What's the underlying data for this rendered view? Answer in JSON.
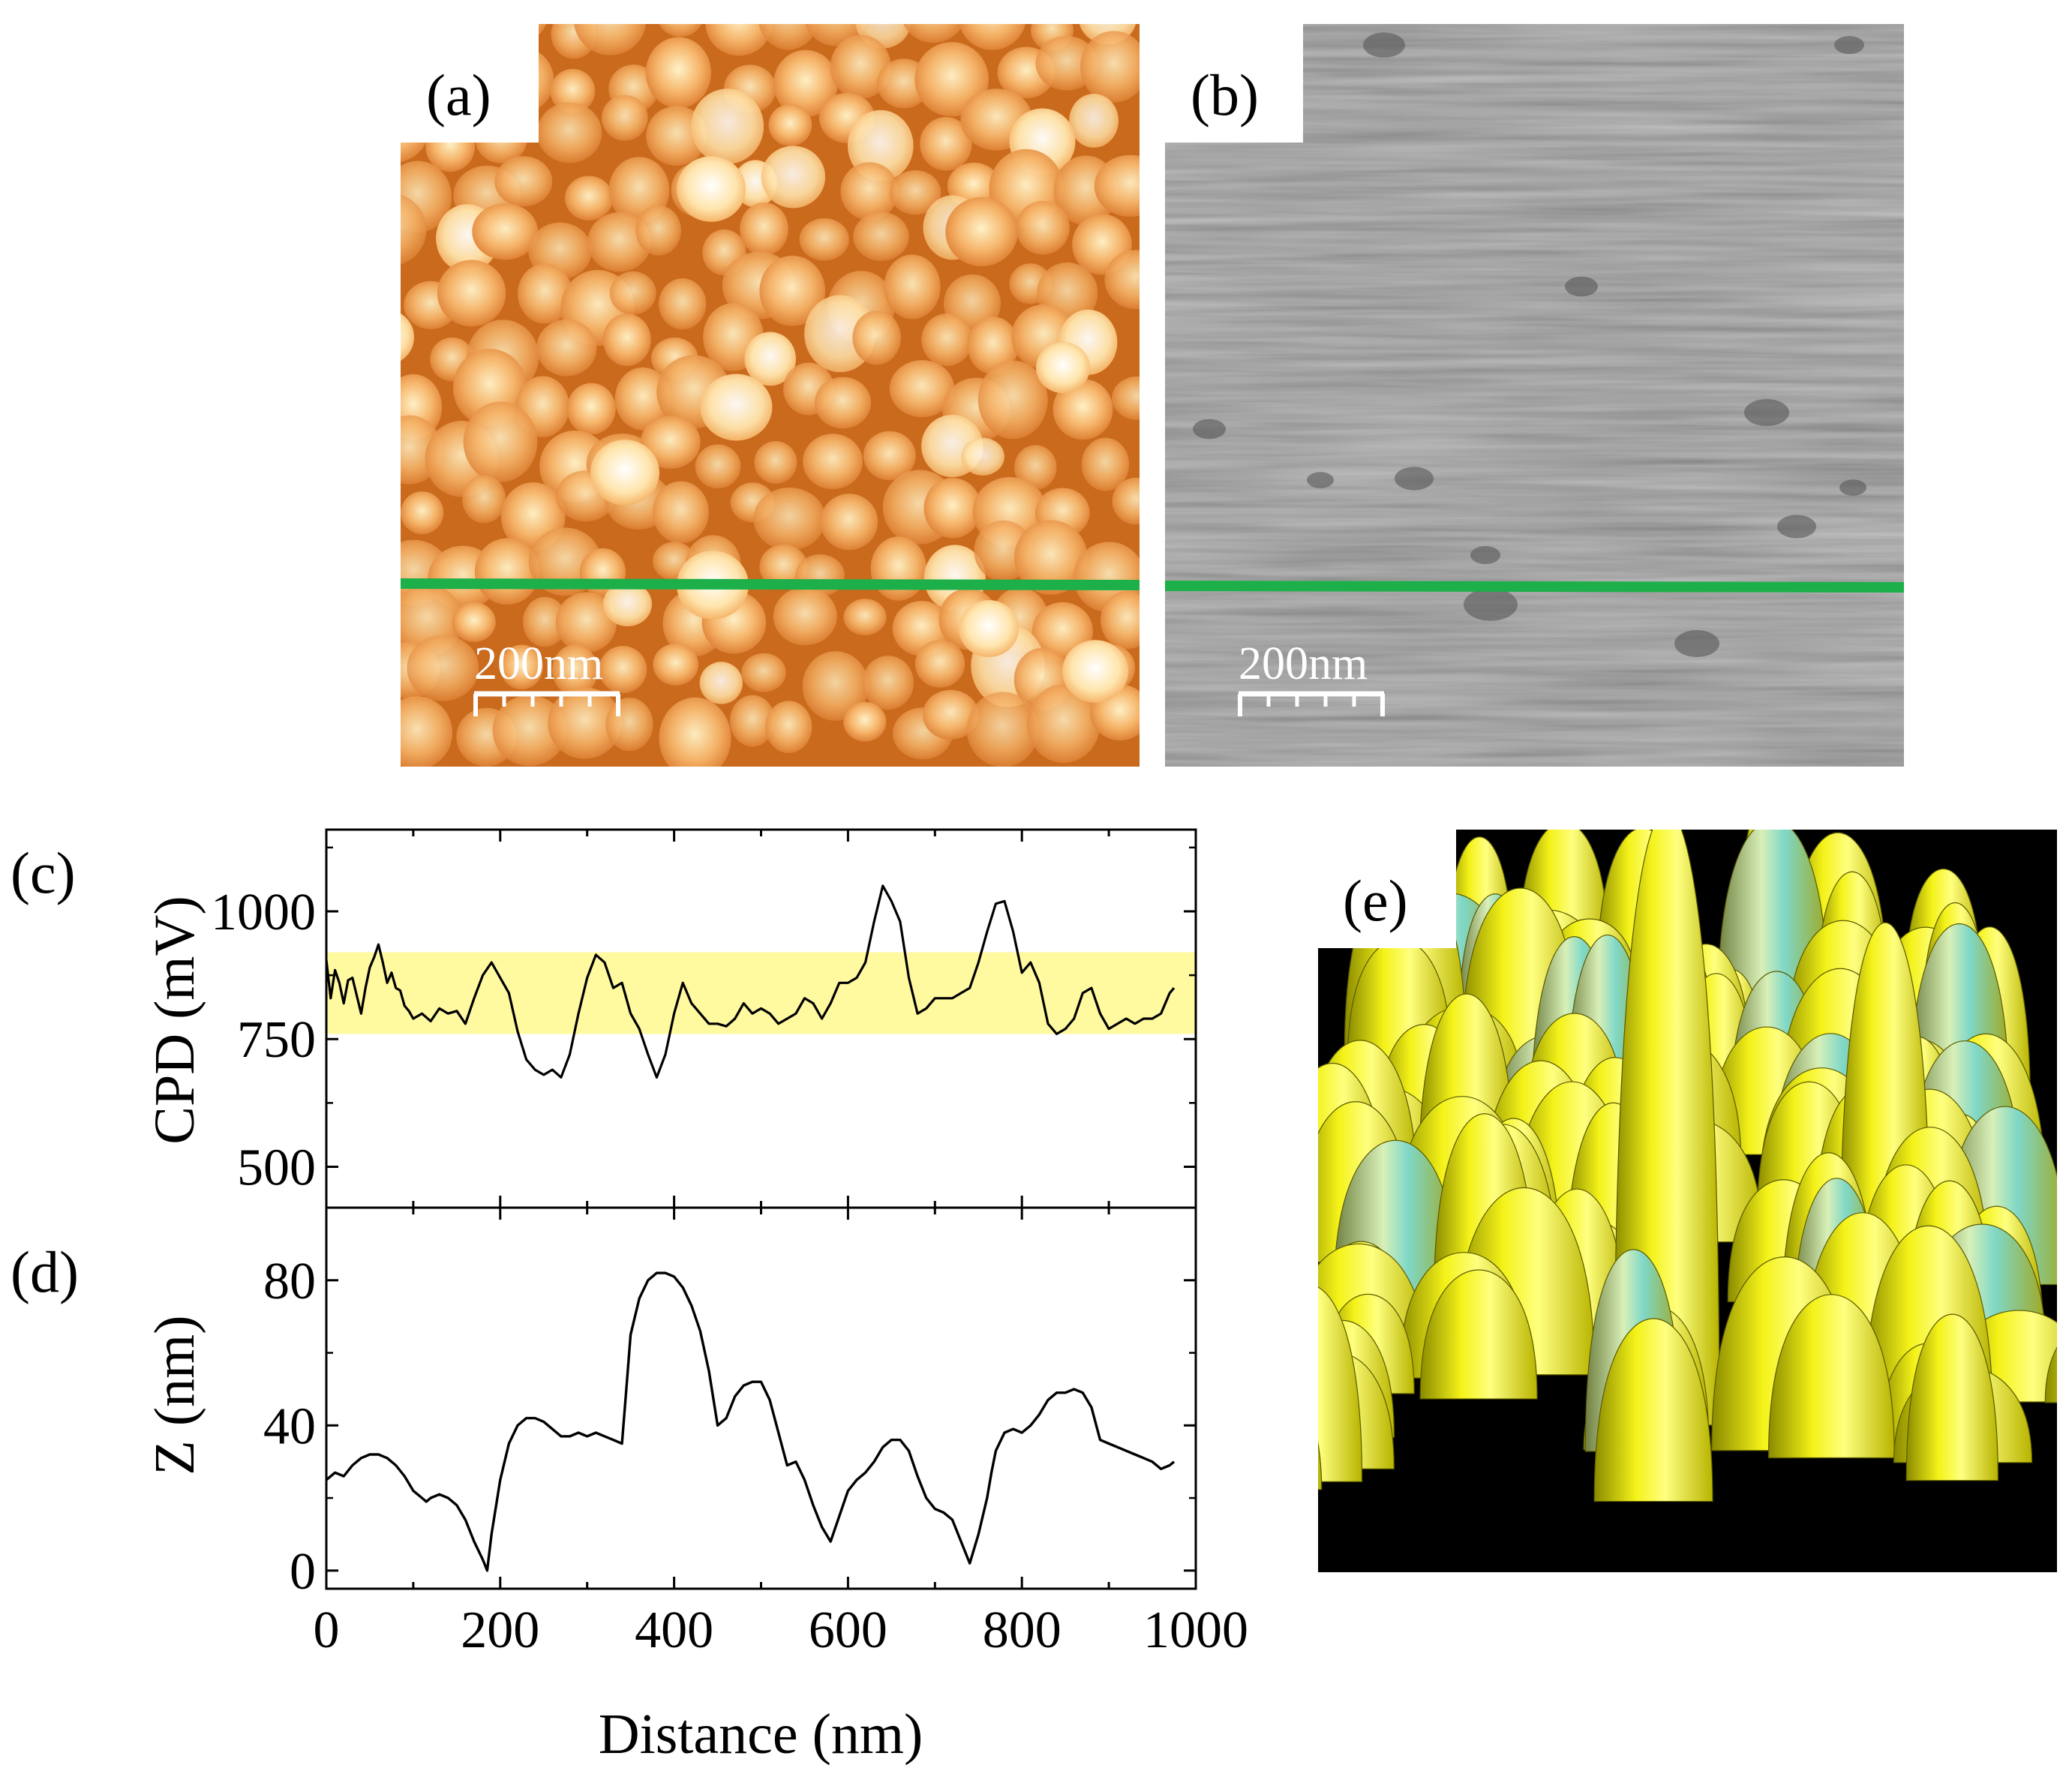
{
  "figure": {
    "panels": {
      "a": {
        "label": "(a)",
        "scale_bar": "200nm",
        "image": "afm-topography-orange"
      },
      "b": {
        "label": "(b)",
        "scale_bar": "200nm",
        "image": "kpfm-cpd-map-gray"
      },
      "e": {
        "label": "(e)",
        "image": "3d-surface-render-yellow"
      }
    },
    "colors": {
      "line_scan": "#1db04a",
      "band": "#fff9a0",
      "curve": "#000000",
      "orange_dark": "#b04a08",
      "orange_light": "#ffe6b0",
      "gray_base": "#8a8a8a",
      "surface_yellow": "#f2ef10"
    }
  },
  "chart_data": [
    {
      "type": "line",
      "panel_label": "(c)",
      "title": "",
      "xlabel": "Distance (nm)",
      "ylabel": "CPD (mV)",
      "xlim": [
        0,
        1000
      ],
      "ylim": [
        420,
        1160
      ],
      "yticks": [
        "500",
        "750",
        "1000"
      ],
      "band": {
        "from": 760,
        "to": 920
      },
      "series": [
        {
          "x": [
            0,
            5,
            10,
            15,
            20,
            25,
            30,
            35,
            40,
            45,
            50,
            55,
            60,
            65,
            70,
            75,
            80,
            85,
            90,
            95,
            100,
            110,
            120,
            130,
            140,
            150,
            160,
            170,
            180,
            190,
            200,
            210,
            220,
            230,
            240,
            250,
            260,
            270,
            280,
            290,
            300,
            310,
            320,
            330,
            340,
            350,
            360,
            370,
            380,
            390,
            400,
            410,
            420,
            430,
            440,
            450,
            460,
            470,
            480,
            490,
            500,
            510,
            520,
            530,
            540,
            550,
            560,
            570,
            580,
            590,
            600,
            610,
            620,
            630,
            640,
            650,
            660,
            670,
            680,
            690,
            700,
            710,
            720,
            730,
            740,
            750,
            760,
            770,
            780,
            790,
            800,
            810,
            820,
            830,
            840,
            850,
            860,
            870,
            880,
            890,
            900,
            910,
            920,
            930,
            940,
            950,
            960,
            970,
            975
          ],
          "y": [
            905,
            830,
            885,
            860,
            820,
            865,
            870,
            835,
            800,
            850,
            890,
            910,
            935,
            900,
            860,
            880,
            850,
            845,
            815,
            805,
            790,
            800,
            785,
            810,
            800,
            805,
            780,
            830,
            875,
            900,
            870,
            840,
            765,
            710,
            690,
            680,
            690,
            675,
            720,
            800,
            870,
            915,
            900,
            850,
            860,
            800,
            770,
            720,
            675,
            720,
            800,
            860,
            820,
            800,
            780,
            780,
            775,
            790,
            820,
            800,
            810,
            800,
            780,
            790,
            800,
            830,
            820,
            790,
            820,
            860,
            860,
            870,
            900,
            980,
            1050,
            1020,
            980,
            870,
            800,
            810,
            830,
            830,
            830,
            840,
            850,
            900,
            960,
            1015,
            1020,
            960,
            880,
            900,
            860,
            780,
            760,
            770,
            790,
            840,
            850,
            800,
            770,
            780,
            790,
            780,
            790,
            790,
            800,
            840,
            850
          ]
        }
      ]
    },
    {
      "type": "line",
      "panel_label": "(d)",
      "title": "",
      "xlabel": "Distance (nm)",
      "ylabel": "Z (nm)",
      "xlim": [
        0,
        1000
      ],
      "ylim": [
        -5,
        100
      ],
      "xticks": [
        "0",
        "200",
        "400",
        "600",
        "800",
        "1000"
      ],
      "yticks": [
        "0",
        "40",
        "80"
      ],
      "series": [
        {
          "x": [
            0,
            10,
            20,
            30,
            40,
            50,
            60,
            70,
            80,
            90,
            100,
            110,
            115,
            120,
            130,
            140,
            150,
            160,
            170,
            180,
            185,
            190,
            200,
            210,
            220,
            230,
            240,
            250,
            260,
            270,
            280,
            290,
            300,
            310,
            320,
            330,
            340,
            345,
            350,
            360,
            370,
            380,
            390,
            400,
            410,
            420,
            430,
            440,
            450,
            460,
            470,
            480,
            490,
            500,
            510,
            520,
            530,
            540,
            550,
            560,
            570,
            580,
            590,
            600,
            610,
            620,
            630,
            640,
            650,
            660,
            670,
            680,
            690,
            700,
            710,
            720,
            730,
            740,
            750,
            760,
            765,
            770,
            780,
            790,
            800,
            810,
            820,
            830,
            840,
            850,
            860,
            870,
            880,
            890,
            900,
            910,
            920,
            930,
            940,
            950,
            960,
            970,
            975
          ],
          "y": [
            25,
            27,
            26,
            29,
            31,
            32,
            32,
            31,
            29,
            26,
            22,
            20,
            19,
            20,
            21,
            20,
            18,
            14,
            8,
            3,
            0,
            10,
            25,
            35,
            40,
            42,
            42,
            41,
            39,
            37,
            37,
            38,
            37,
            38,
            37,
            36,
            35,
            50,
            65,
            75,
            80,
            82,
            82,
            81,
            78,
            73,
            66,
            55,
            40,
            42,
            48,
            51,
            52,
            52,
            47,
            38,
            29,
            30,
            25,
            18,
            12,
            8,
            15,
            22,
            25,
            27,
            30,
            34,
            36,
            36,
            33,
            26,
            20,
            17,
            16,
            14,
            8,
            2,
            10,
            20,
            27,
            33,
            38,
            39,
            38,
            40,
            43,
            47,
            49,
            49,
            50,
            49,
            45,
            36,
            35,
            34,
            33,
            32,
            31,
            30,
            28,
            29,
            30
          ]
        }
      ]
    }
  ]
}
